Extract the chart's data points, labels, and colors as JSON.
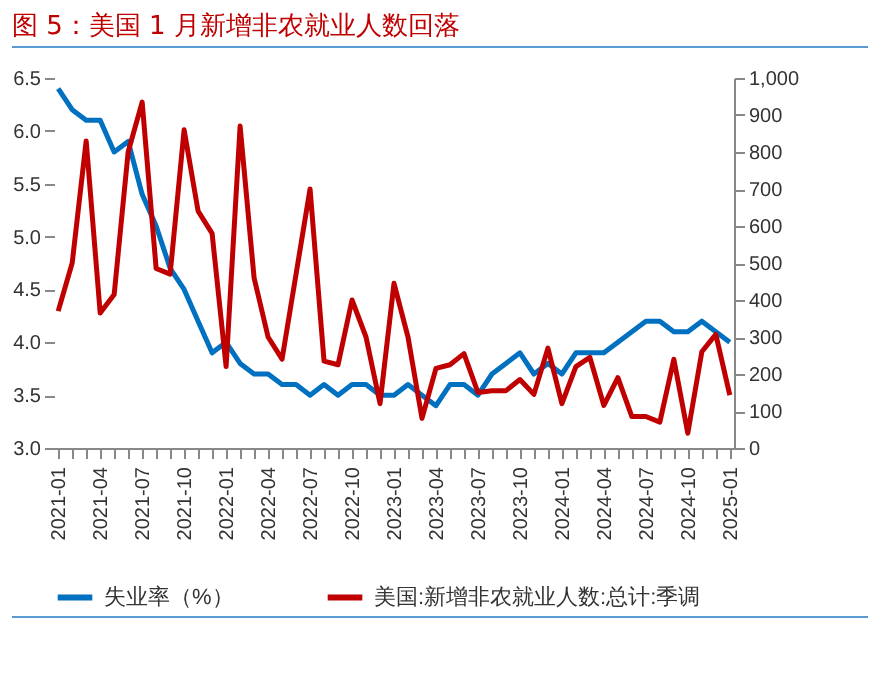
{
  "chart_data": {
    "type": "line",
    "title": "图 5：美国 1 月新增非农就业人数回落",
    "categories": [
      "2021-01",
      null,
      null,
      "2021-04",
      null,
      null,
      "2021-07",
      null,
      null,
      "2021-10",
      null,
      null,
      "2022-01",
      null,
      null,
      "2022-04",
      null,
      null,
      "2022-07",
      null,
      null,
      "2022-10",
      null,
      null,
      "2023-01",
      null,
      null,
      "2023-04",
      null,
      null,
      "2023-07",
      null,
      null,
      "2023-10",
      null,
      null,
      "2024-01",
      null,
      null,
      "2024-04",
      null,
      null,
      "2024-07",
      null,
      null,
      "2024-10",
      null,
      null,
      "2025-01"
    ],
    "series": [
      {
        "name": "失业率（%）",
        "color": "#0070c0",
        "values": [
          6.4,
          6.2,
          6.1,
          6.1,
          5.8,
          5.9,
          5.4,
          5.1,
          4.7,
          4.5,
          4.2,
          3.9,
          4.0,
          3.8,
          3.7,
          3.7,
          3.6,
          3.6,
          3.5,
          3.6,
          3.5,
          3.6,
          3.6,
          3.5,
          3.5,
          3.6,
          3.5,
          3.4,
          3.6,
          3.6,
          3.5,
          3.7,
          3.8,
          3.9,
          3.7,
          3.8,
          3.7,
          3.9,
          3.9,
          3.9,
          4.0,
          4.1,
          4.2,
          4.2,
          4.1,
          4.1,
          4.2,
          4.1,
          4.0
        ]
      },
      {
        "name": "美国:新增非农就业人数:总计:季调",
        "color": "#c00000",
        "axis": "y2",
        "values": [
          370,
          500,
          830,
          365,
          415,
          800,
          935,
          485,
          470,
          860,
          640,
          580,
          220,
          870,
          460,
          300,
          240,
          470,
          700,
          235,
          225,
          400,
          300,
          120,
          445,
          300,
          80,
          215,
          225,
          255,
          150,
          155,
          155,
          185,
          145,
          270,
          120,
          220,
          245,
          115,
          190,
          85,
          85,
          70,
          240,
          40,
          260,
          307,
          143
        ]
      }
    ],
    "ylim": [
      3.0,
      6.5
    ],
    "yticks": [
      {
        "value": 3,
        "label": "3.0"
      },
      3.5,
      {
        "value": 4,
        "label": "4.0"
      },
      4.5,
      {
        "value": 5,
        "label": "5.0"
      },
      5.5,
      {
        "value": 6,
        "label": "6.0"
      },
      6.5
    ],
    "y2lim": [
      0,
      1000
    ],
    "y2ticks": [
      0,
      100,
      200,
      300,
      400,
      500,
      600,
      700,
      800,
      900,
      {
        "value": 1000,
        "label": "1,000"
      }
    ],
    "legend": "bottom",
    "grid": false,
    "marker": "none",
    "line_style": "solid"
  }
}
